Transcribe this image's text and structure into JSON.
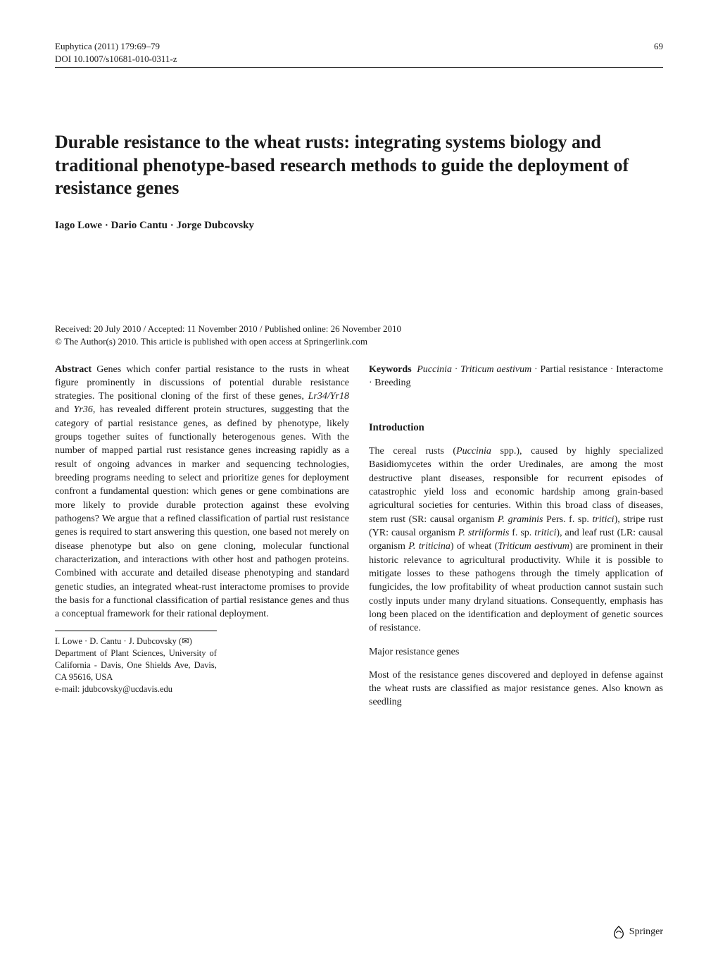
{
  "header": {
    "journal": "Euphytica (2011) 179:69–79",
    "doi": "DOI 10.1007/s10681-010-0311-z",
    "page_number": "69"
  },
  "title": "Durable resistance to the wheat rusts: integrating systems biology and traditional phenotype-based research methods to guide the deployment of resistance genes",
  "authors": "Iago Lowe · Dario Cantu · Jorge Dubcovsky",
  "dates": "Received: 20 July 2010 / Accepted: 11 November 2010 / Published online: 26 November 2010",
  "copyright": "© The Author(s) 2010. This article is published with open access at Springerlink.com",
  "abstract_label": "Abstract",
  "abstract_text": "  Genes which confer partial resistance to the rusts in wheat figure prominently in discussions of potential durable resistance strategies. The positional cloning of the first of these genes, Lr34/Yr18 and Yr36, has revealed different protein structures, suggesting that the category of partial resistance genes, as defined by phenotype, likely groups together suites of functionally heterogenous genes. With the number of mapped partial rust resistance genes increasing rapidly as a result of ongoing advances in marker and sequencing technologies, breeding programs needing to select and prioritize genes for deployment confront a fundamental question: which genes or gene combinations are more likely to provide durable protection against these evolving pathogens? We argue that a refined classification of partial rust resistance genes is required to start answering this question, one based not merely on disease phenotype but also on gene cloning, molecular functional characterization, and interactions with other host and pathogen proteins. Combined with accurate and detailed disease phenotyping and standard genetic studies, an integrated wheat-rust interactome promises to provide the basis for a functional classification of partial resistance genes and thus a conceptual framework for their rational deployment.",
  "keywords_label": "Keywords",
  "keywords_text": "  Puccinia · Triticum aestivum · Partial resistance · Interactome · Breeding",
  "keywords_runs": [
    {
      "t": "Puccinia",
      "i": true
    },
    {
      "t": " · ",
      "i": false
    },
    {
      "t": "Triticum aestivum",
      "i": true
    },
    {
      "t": " · Partial resistance · Interactome · Breeding",
      "i": false
    }
  ],
  "intro_heading": "Introduction",
  "intro_runs": [
    {
      "t": "The cereal rusts (",
      "i": false
    },
    {
      "t": "Puccinia",
      "i": true
    },
    {
      "t": " spp.), caused by highly specialized Basidiomycetes within the order Uredinales, are among the most destructive plant diseases, responsible for recurrent episodes of catastrophic yield loss and economic hardship among grain-based agricultural societies for centuries. Within this broad class of diseases, stem rust (SR: causal organism ",
      "i": false
    },
    {
      "t": "P. graminis",
      "i": true
    },
    {
      "t": " Pers. f. sp. ",
      "i": false
    },
    {
      "t": "tritici",
      "i": true
    },
    {
      "t": "), stripe rust (YR: causal organism ",
      "i": false
    },
    {
      "t": "P. striiformis",
      "i": true
    },
    {
      "t": " f. sp. ",
      "i": false
    },
    {
      "t": "tritici",
      "i": true
    },
    {
      "t": "), and leaf rust (LR: causal organism ",
      "i": false
    },
    {
      "t": "P. triticina",
      "i": true
    },
    {
      "t": ") of wheat (",
      "i": false
    },
    {
      "t": "Triticum aestivum",
      "i": true
    },
    {
      "t": ") are prominent in their historic relevance to agricultural productivity. While it is possible to mitigate losses to these pathogens through the timely application of fungicides, the low profitability of wheat production cannot sustain such costly inputs under many dryland situations. Consequently, emphasis has long been placed on the identification and deployment of genetic sources of resistance.",
      "i": false
    }
  ],
  "sub_heading": "Major resistance genes",
  "sub_para": "Most of the resistance genes discovered and deployed in defense against the wheat rusts are classified as major resistance genes. Also known as seedling",
  "affiliation": {
    "line1_pre": "I. Lowe · D. Cantu · J. Dubcovsky (",
    "line1_post": ")",
    "dept": "Department of Plant Sciences, University of California - Davis, One Shields Ave, Davis, CA 95616, USA",
    "email": "e-mail: jdubcovsky@ucdavis.edu"
  },
  "footer_brand": "Springer",
  "italic_genes": "Lr34/Yr18",
  "italic_gene2": "Yr36",
  "colors": {
    "text": "#1a1a1a",
    "background": "#ffffff",
    "rule": "#000000"
  },
  "typography": {
    "title_fontsize_pt": 20,
    "body_fontsize_pt": 10.5,
    "header_fontsize_pt": 9.5,
    "authors_fontsize_pt": 11
  }
}
